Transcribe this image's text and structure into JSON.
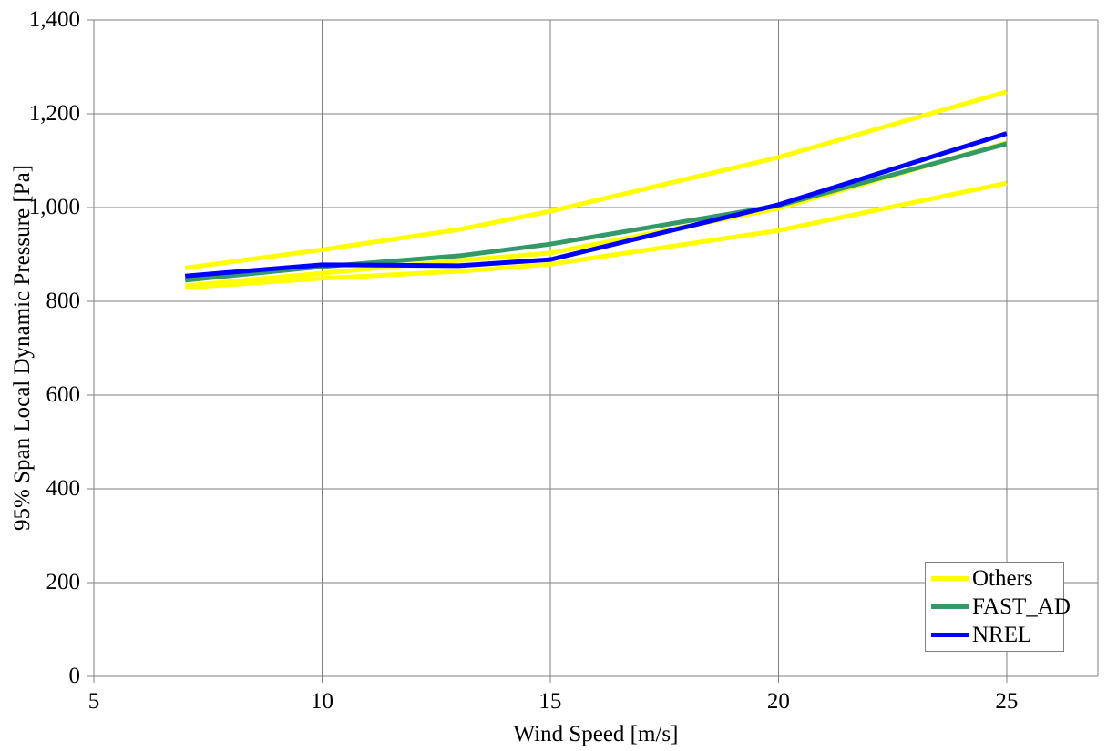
{
  "chart_data": {
    "type": "line",
    "title": "",
    "xlabel": "Wind Speed [m/s]",
    "ylabel": "95% Span Local Dynamic Pressure [Pa]",
    "xlim": [
      5,
      27
    ],
    "ylim": [
      0,
      1400
    ],
    "x_ticks": {
      "values": [
        5,
        10,
        15,
        20,
        25
      ],
      "labels": [
        "5",
        "10",
        "15",
        "20",
        "25"
      ]
    },
    "y_ticks": {
      "values": [
        0,
        200,
        400,
        600,
        800,
        1000,
        1200,
        1400
      ],
      "labels": [
        "0",
        "200",
        "400",
        "600",
        "800",
        "1,000",
        "1,200",
        "1,400"
      ]
    },
    "grid": {
      "show": true,
      "color": "#808080",
      "vertical_at": [
        10,
        15,
        20,
        25
      ],
      "horizontal_at": [
        200,
        400,
        600,
        800,
        1000,
        1200,
        1400
      ]
    },
    "x": [
      7,
      10,
      13,
      15,
      20,
      25
    ],
    "series": [
      {
        "name": "Others",
        "color": "#FFFF00",
        "values": [
          871,
          910,
          953,
          992,
          1107,
          1247
        ]
      },
      {
        "name": "Others",
        "color": "#FFFF00",
        "values": [
          833,
          860,
          887,
          903,
          998,
          1138
        ]
      },
      {
        "name": "Others",
        "color": "#FFFF00",
        "values": [
          829,
          849,
          864,
          879,
          951,
          1052
        ]
      },
      {
        "name": "FAST_AD",
        "color": "#339966",
        "values": [
          845,
          874,
          897,
          922,
          1004,
          1136
        ]
      },
      {
        "name": "NREL",
        "color": "#0000FF",
        "values": [
          854,
          878,
          876,
          889,
          1006,
          1158
        ]
      }
    ],
    "legend": {
      "position": "bottom-right",
      "entries": [
        {
          "label": "Others",
          "color": "#FFFF00"
        },
        {
          "label": "FAST_AD",
          "color": "#339966"
        },
        {
          "label": "NREL",
          "color": "#0000FF"
        }
      ]
    }
  }
}
